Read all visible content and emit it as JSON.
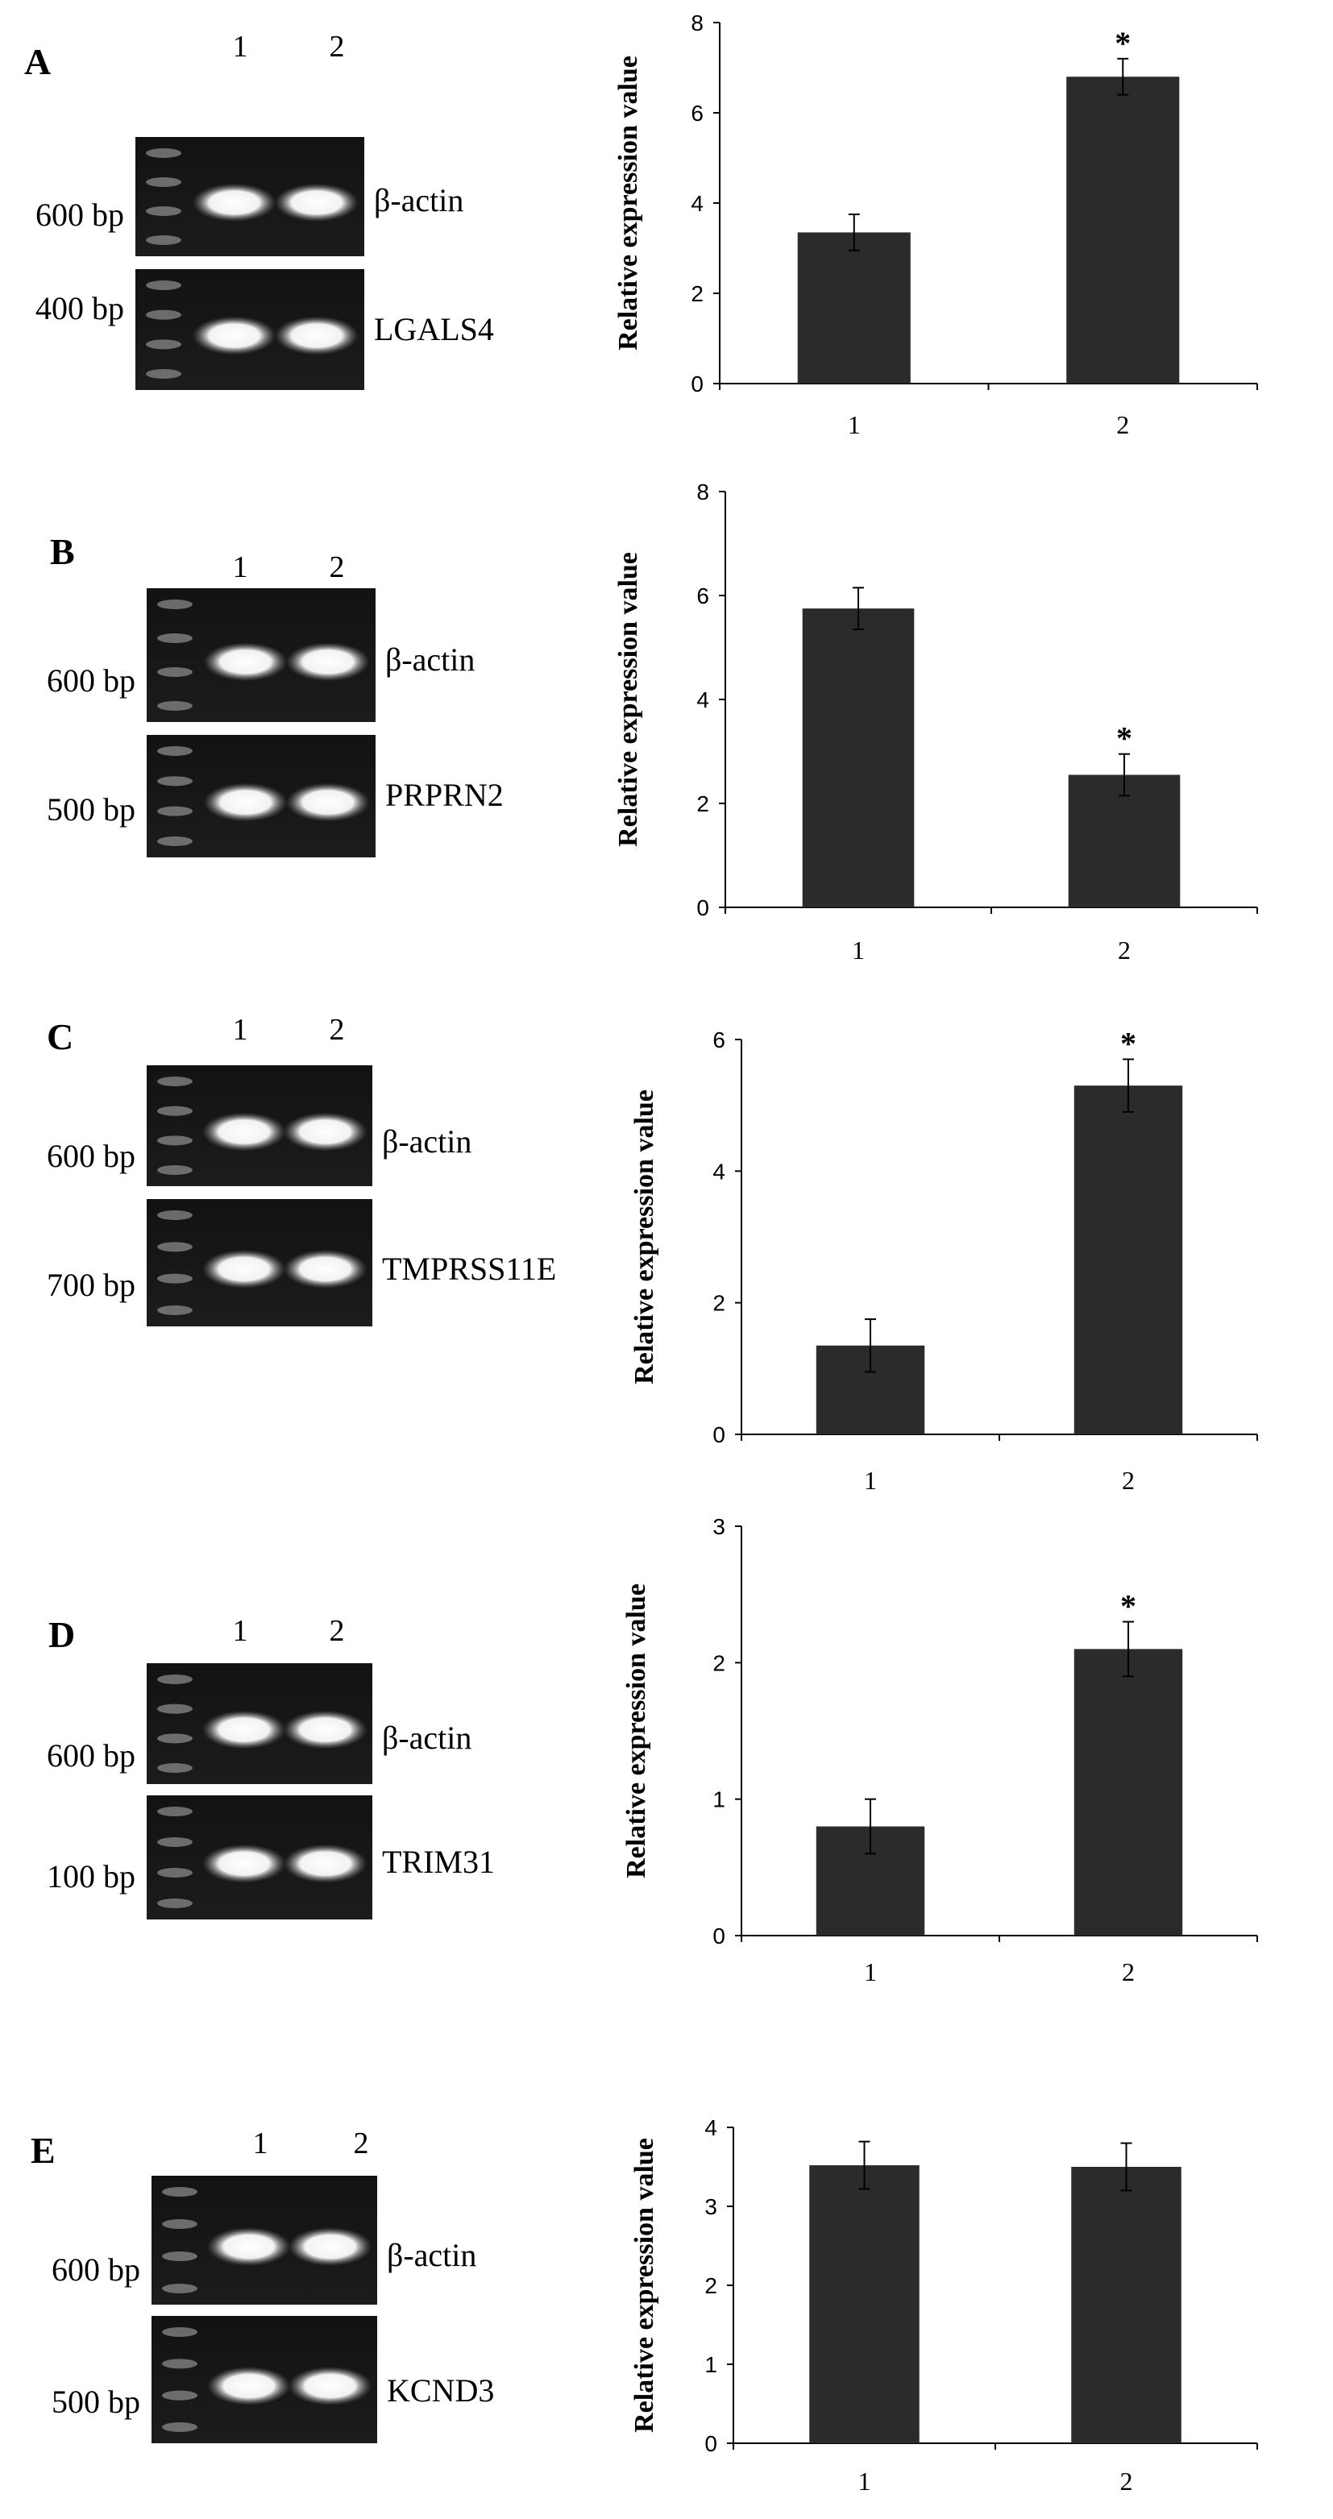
{
  "panels": [
    {
      "letter": "A",
      "lanes": [
        "1",
        "2"
      ],
      "gels": [
        {
          "bp": "600 bp",
          "gene": "β-actin"
        },
        {
          "bp": "400 bp",
          "gene": "LGALS4"
        }
      ]
    },
    {
      "letter": "B",
      "lanes": [
        "1",
        "2"
      ],
      "gels": [
        {
          "bp": "600 bp",
          "gene": "β-actin"
        },
        {
          "bp": "500 bp",
          "gene": "PRPRN2"
        }
      ]
    },
    {
      "letter": "C",
      "lanes": [
        "1",
        "2"
      ],
      "gels": [
        {
          "bp": "600 bp",
          "gene": "β-actin"
        },
        {
          "bp": "700 bp",
          "gene": "TMPRSS11E"
        }
      ]
    },
    {
      "letter": "D",
      "lanes": [
        "1",
        "2"
      ],
      "gels": [
        {
          "bp": "600 bp",
          "gene": "β-actin"
        },
        {
          "bp": "100 bp",
          "gene": "TRIM31"
        }
      ]
    },
    {
      "letter": "E",
      "lanes": [
        "1",
        "2"
      ],
      "gels": [
        {
          "bp": "600 bp",
          "gene": "β-actin"
        },
        {
          "bp": "500 bp",
          "gene": "KCND3"
        }
      ]
    }
  ],
  "chart_data": [
    {
      "type": "bar",
      "categories": [
        "1",
        "2"
      ],
      "values": [
        3.35,
        6.8
      ],
      "errors": [
        0.4,
        0.4
      ],
      "significant": [
        false,
        true
      ],
      "ylabel": "Relative expression value",
      "ylim": [
        0,
        8
      ],
      "yticks": [
        0,
        2,
        4,
        6,
        8
      ],
      "bar_color": "#2b2b2b"
    },
    {
      "type": "bar",
      "categories": [
        "1",
        "2"
      ],
      "values": [
        5.75,
        2.55
      ],
      "errors": [
        0.4,
        0.4
      ],
      "significant": [
        false,
        true
      ],
      "ylabel": "Relative expression value",
      "ylim": [
        0,
        8
      ],
      "yticks": [
        0,
        2,
        4,
        6,
        8
      ],
      "bar_color": "#2b2b2b"
    },
    {
      "type": "bar",
      "categories": [
        "1",
        "2"
      ],
      "values": [
        1.35,
        5.3
      ],
      "errors": [
        0.4,
        0.4
      ],
      "significant": [
        false,
        true
      ],
      "ylabel": "Relative expression value",
      "ylim": [
        0,
        6
      ],
      "yticks": [
        0,
        2,
        4,
        6
      ],
      "bar_color": "#2b2b2b"
    },
    {
      "type": "bar",
      "categories": [
        "1",
        "2"
      ],
      "values": [
        0.8,
        2.1
      ],
      "errors": [
        0.2,
        0.2
      ],
      "significant": [
        false,
        true
      ],
      "ylabel": "Relative expression value",
      "ylim": [
        0,
        3
      ],
      "yticks": [
        0,
        1,
        2,
        3
      ],
      "bar_color": "#2b2b2b"
    },
    {
      "type": "bar",
      "categories": [
        "1",
        "2"
      ],
      "values": [
        3.52,
        3.5
      ],
      "errors": [
        0.3,
        0.3
      ],
      "significant": [
        false,
        false
      ],
      "ylabel": "Relative expression value",
      "ylim": [
        0,
        4
      ],
      "yticks": [
        0,
        1,
        2,
        3,
        4
      ],
      "bar_color": "#2b2b2b"
    }
  ],
  "significance_marker": "*"
}
